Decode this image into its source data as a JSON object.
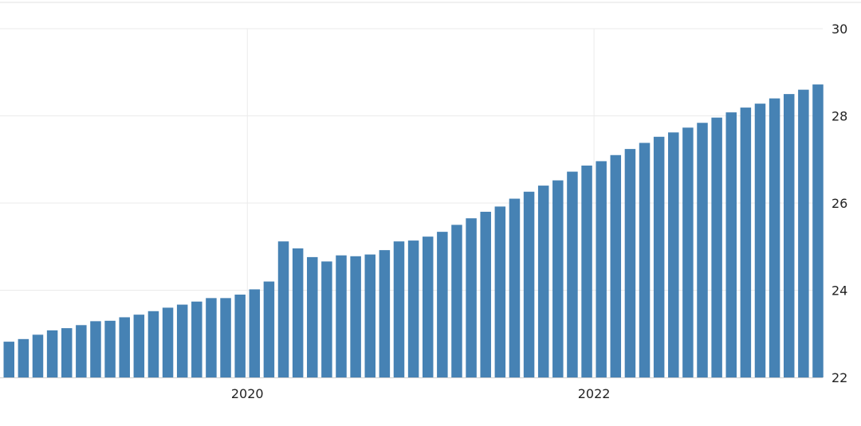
{
  "chart_data": {
    "type": "bar",
    "title": "",
    "xlabel": "",
    "ylabel": "",
    "ylim": [
      22,
      30
    ],
    "y_ticks": [
      "22",
      "24",
      "26",
      "28",
      "30"
    ],
    "y_axis_side": "right",
    "x_ticks": [
      {
        "label": "2020",
        "index": 16.5
      },
      {
        "label": "2022",
        "index": 40.5
      }
    ],
    "grid": true,
    "color": "#4682b4",
    "values": [
      22.82,
      22.88,
      22.98,
      23.08,
      23.13,
      23.2,
      23.29,
      23.3,
      23.38,
      23.44,
      23.52,
      23.6,
      23.67,
      23.74,
      23.82,
      23.82,
      23.9,
      24.02,
      24.2,
      25.12,
      24.96,
      24.76,
      24.66,
      24.8,
      24.78,
      24.82,
      24.92,
      25.12,
      25.14,
      25.23,
      25.34,
      25.5,
      25.65,
      25.8,
      25.92,
      26.1,
      26.26,
      26.4,
      26.52,
      26.72,
      26.86,
      26.96,
      27.1,
      27.24,
      27.38,
      27.52,
      27.62,
      27.73,
      27.84,
      27.96,
      28.08,
      28.19,
      28.28,
      28.4,
      28.5,
      28.6,
      28.72
    ]
  }
}
